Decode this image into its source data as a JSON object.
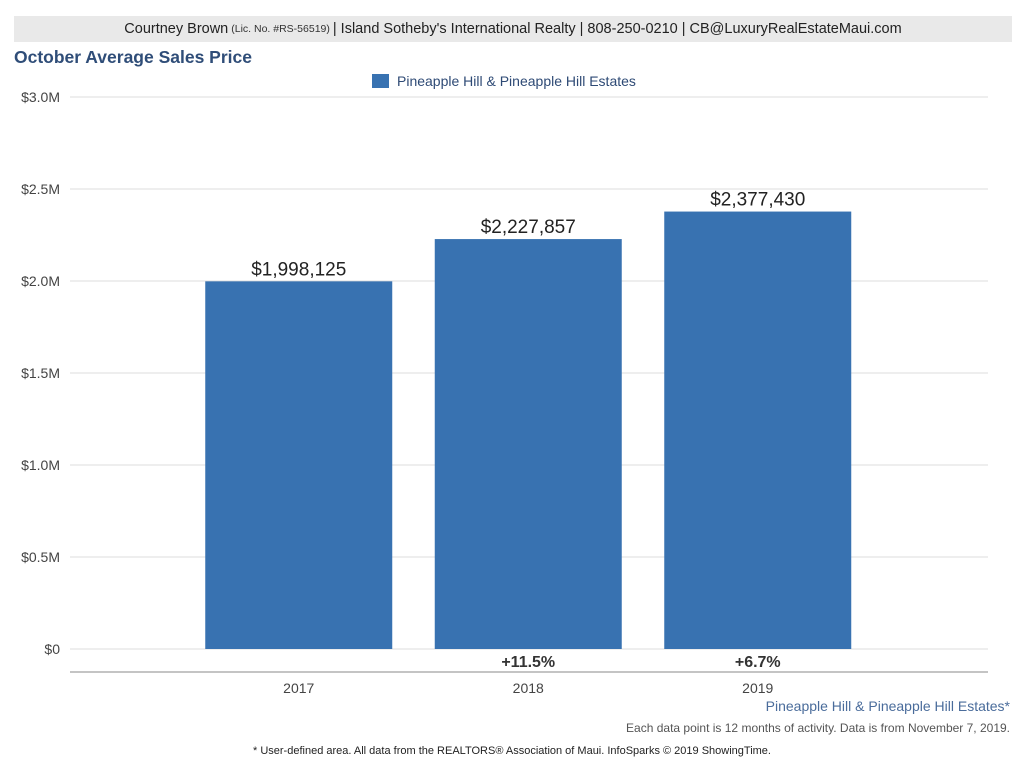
{
  "header": {
    "agent_name": "Courtney Brown",
    "license": "(Lic. No. #RS-56519)",
    "details": "| Island Sotheby's International Realty | 808-250-0210 | CB@LuxuryRealEstateMaui.com"
  },
  "colors": {
    "bar": "#3872b1",
    "grid": "#dedede",
    "title": "#2f4d78",
    "axis_text": "#444444"
  },
  "footer": {
    "area_name": "Pineapple Hill & Pineapple Hill Estates*",
    "data_note": "Each data point is 12 months of activity. Data is from November 7, 2019.",
    "disclaimer": "* User-defined area. All data from the REALTORS® Association of Maui. InfoSparks © 2019 ShowingTime."
  },
  "chart_data": {
    "type": "bar",
    "title": "October Average Sales Price",
    "categories": [
      "2017",
      "2018",
      "2019"
    ],
    "series": [
      {
        "name": "Pineapple Hill & Pineapple Hill Estates",
        "values": [
          1998125,
          2227857,
          2377430
        ]
      }
    ],
    "value_labels": [
      "$1,998,125",
      "$2,227,857",
      "$2,377,430"
    ],
    "change_labels": [
      "",
      "+11.5%",
      "+6.7%"
    ],
    "ylim": [
      0,
      3000000
    ],
    "yticks": [
      0,
      500000,
      1000000,
      1500000,
      2000000,
      2500000,
      3000000
    ],
    "ytick_labels": [
      "$0",
      "$0.5M",
      "$1.0M",
      "$1.5M",
      "$2.0M",
      "$2.5M",
      "$3.0M"
    ],
    "xlabel": "",
    "ylabel": "",
    "grid": true,
    "legend_position": "top-center"
  }
}
